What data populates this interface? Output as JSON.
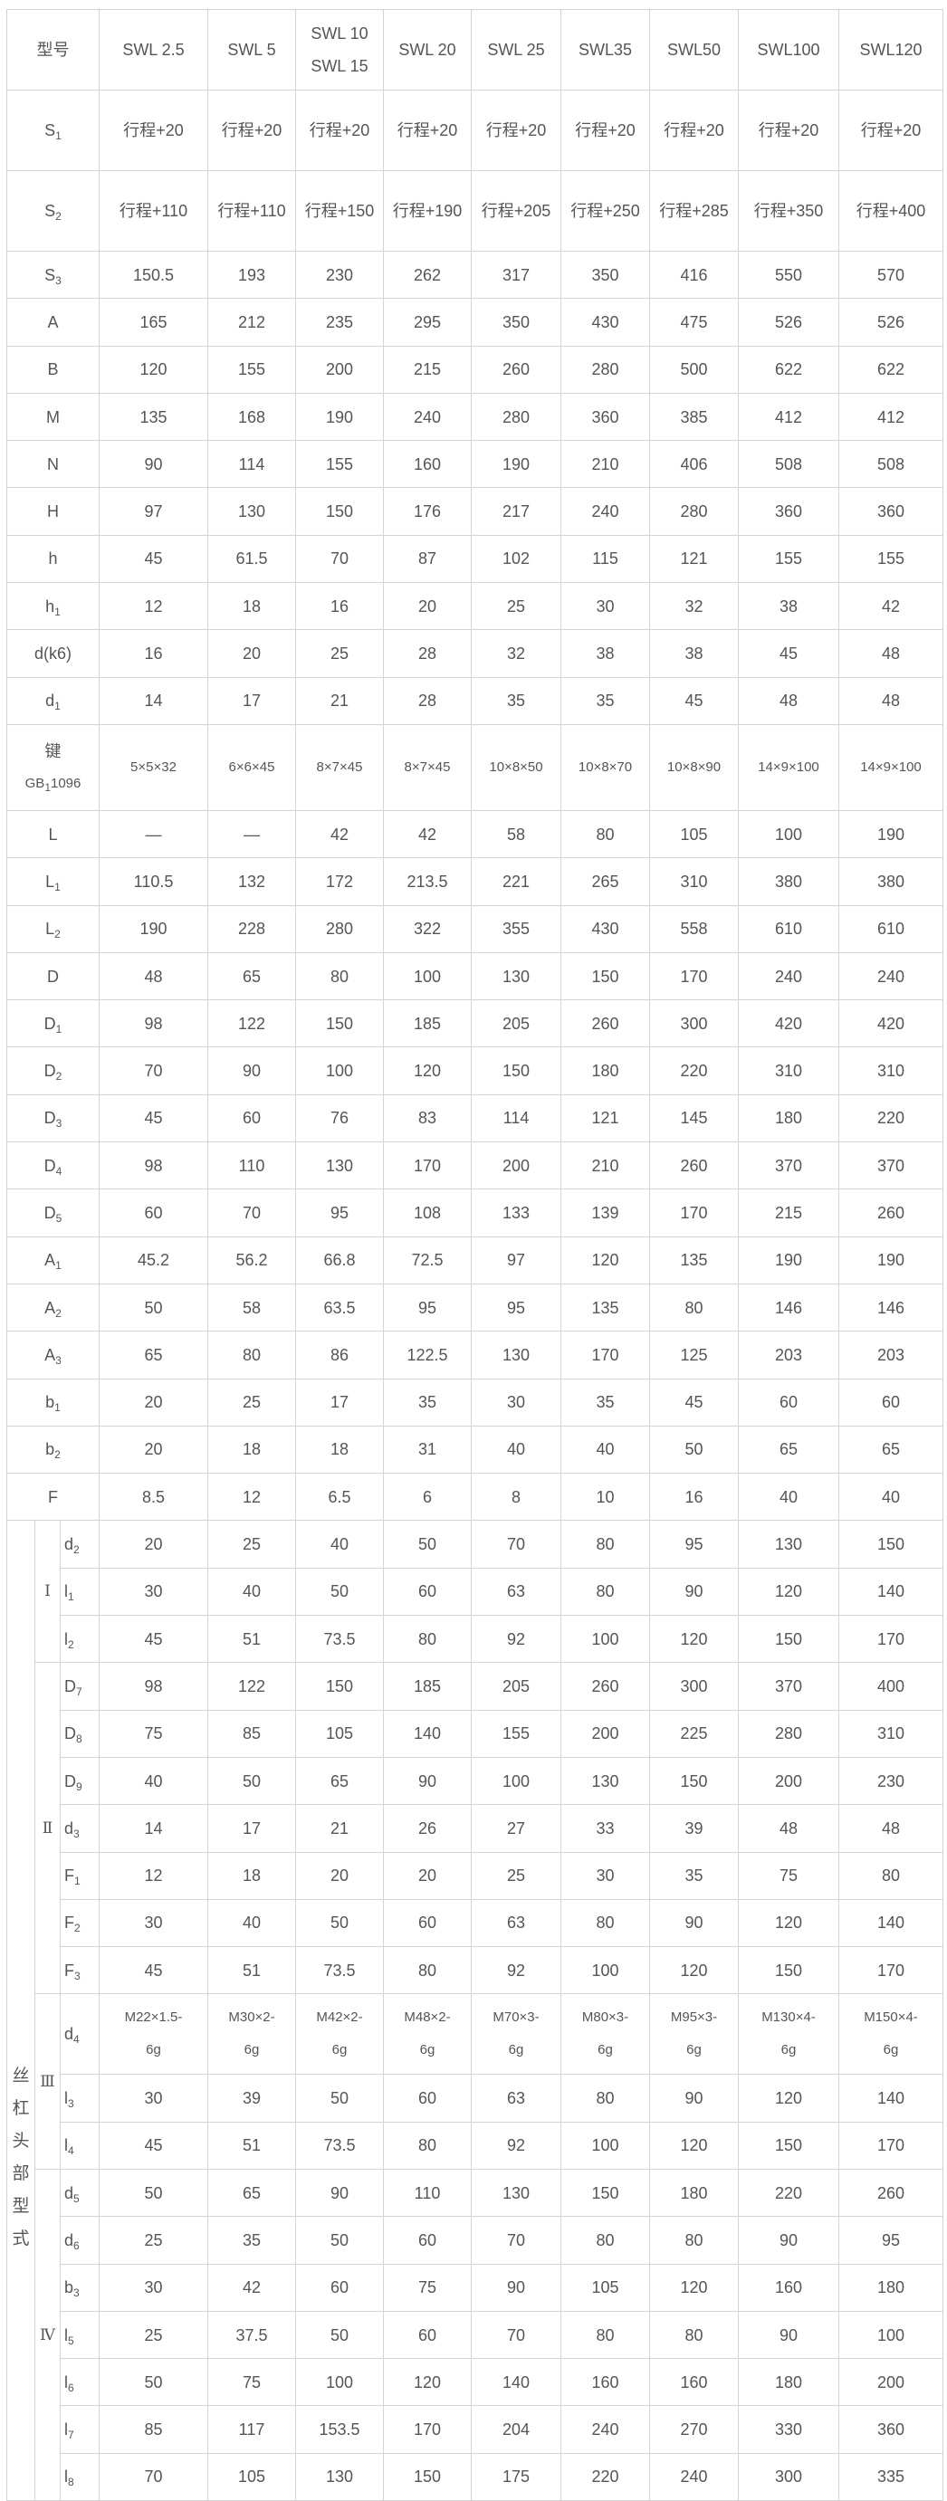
{
  "header": {
    "label": "型号",
    "models": [
      [
        "SWL 2.5"
      ],
      [
        "SWL  5"
      ],
      [
        "SWL 10",
        "SWL 15"
      ],
      [
        "SWL 20"
      ],
      [
        "SWL 25"
      ],
      [
        "SWL35"
      ],
      [
        "SWL50"
      ],
      [
        "SWL100"
      ],
      [
        "SWL120"
      ]
    ]
  },
  "rows": [
    {
      "name": "S",
      "sub": "1",
      "values": [
        "行程+20",
        "行程+20",
        "行程+20",
        "行程+20",
        "行程+20",
        "行程+20",
        "行程+20",
        "行程+20",
        "行程+20"
      ]
    },
    {
      "name": "S",
      "sub": "2",
      "values": [
        "行程+110",
        "行程+110",
        "行程+150",
        "行程+190",
        "行程+205",
        "行程+250",
        "行程+285",
        "行程+350",
        "行程+400"
      ]
    },
    {
      "name": "S",
      "sub": "3",
      "values": [
        "150.5",
        "193",
        "230",
        "262",
        "317",
        "350",
        "416",
        "550",
        "570"
      ]
    },
    {
      "name": "A",
      "sub": "",
      "values": [
        "165",
        "212",
        "235",
        "295",
        "350",
        "430",
        "475",
        "526",
        "526"
      ]
    },
    {
      "name": "B",
      "sub": "",
      "values": [
        "120",
        "155",
        "200",
        "215",
        "260",
        "280",
        "500",
        "622",
        "622"
      ]
    },
    {
      "name": "M",
      "sub": "",
      "values": [
        "135",
        "168",
        "190",
        "240",
        "280",
        "360",
        "385",
        "412",
        "412"
      ]
    },
    {
      "name": "N",
      "sub": "",
      "values": [
        "90",
        "114",
        "155",
        "160",
        "190",
        "210",
        "406",
        "508",
        "508"
      ]
    },
    {
      "name": "H",
      "sub": "",
      "values": [
        "97",
        "130",
        "150",
        "176",
        "217",
        "240",
        "280",
        "360",
        "360"
      ]
    },
    {
      "name": "h",
      "sub": "",
      "values": [
        "45",
        "61.5",
        "70",
        "87",
        "102",
        "115",
        "121",
        "155",
        "155"
      ]
    },
    {
      "name": "h",
      "sub": "1",
      "values": [
        "12",
        "18",
        "16",
        "20",
        "25",
        "30",
        "32",
        "38",
        "42"
      ]
    },
    {
      "name": "d(k6)",
      "sub": "",
      "values": [
        "16",
        "20",
        "25",
        "28",
        "32",
        "38",
        "38",
        "45",
        "48"
      ]
    },
    {
      "name": "d",
      "sub": "1",
      "values": [
        "14",
        "17",
        "21",
        "28",
        "35",
        "35",
        "45",
        "48",
        "48"
      ]
    },
    {
      "name": "键",
      "name2": "GB",
      "sub": "1",
      "name2_rest": "1096",
      "values": [
        "5×5×32",
        "6×6×45",
        "8×7×45",
        "8×7×45",
        "10×8×50",
        "10×8×70",
        "10×8×90",
        "14×9×100",
        "14×9×100"
      ]
    },
    {
      "name": "L",
      "sub": "",
      "values": [
        "—",
        "—",
        "42",
        "42",
        "58",
        "80",
        "105",
        "100",
        "190"
      ]
    },
    {
      "name": "L",
      "sub": "1",
      "values": [
        "110.5",
        "132",
        "172",
        "213.5",
        "221",
        "265",
        "310",
        "380",
        "380"
      ]
    },
    {
      "name": "L",
      "sub": "2",
      "values": [
        "190",
        "228",
        "280",
        "322",
        "355",
        "430",
        "558",
        "610",
        "610"
      ]
    },
    {
      "name": "D",
      "sub": "",
      "values": [
        "48",
        "65",
        "80",
        "100",
        "130",
        "150",
        "170",
        "240",
        "240"
      ]
    },
    {
      "name": "D",
      "sub": "1",
      "values": [
        "98",
        "122",
        "150",
        "185",
        "205",
        "260",
        "300",
        "420",
        "420"
      ]
    },
    {
      "name": "D",
      "sub": "2",
      "values": [
        "70",
        "90",
        "100",
        "120",
        "150",
        "180",
        "220",
        "310",
        "310"
      ]
    },
    {
      "name": "D",
      "sub": "3",
      "values": [
        "45",
        "60",
        "76",
        "83",
        "114",
        "121",
        "145",
        "180",
        "220"
      ]
    },
    {
      "name": "D",
      "sub": "4",
      "values": [
        "98",
        "110",
        "130",
        "170",
        "200",
        "210",
        "260",
        "370",
        "370"
      ]
    },
    {
      "name": "D",
      "sub": "5",
      "values": [
        "60",
        "70",
        "95",
        "108",
        "133",
        "139",
        "170",
        "215",
        "260"
      ]
    },
    {
      "name": "A",
      "sub": "1",
      "values": [
        "45.2",
        "56.2",
        "66.8",
        "72.5",
        "97",
        "120",
        "135",
        "190",
        "190"
      ]
    },
    {
      "name": "A",
      "sub": "2",
      "values": [
        "50",
        "58",
        "63.5",
        "95",
        "95",
        "135",
        "80",
        "146",
        "146"
      ]
    },
    {
      "name": "A",
      "sub": "3",
      "values": [
        "65",
        "80",
        "86",
        "122.5",
        "130",
        "170",
        "125",
        "203",
        "203"
      ]
    },
    {
      "name": "b",
      "sub": "1",
      "values": [
        "20",
        "25",
        "17",
        "35",
        "30",
        "35",
        "45",
        "60",
        "60"
      ]
    },
    {
      "name": "b",
      "sub": "2",
      "values": [
        "20",
        "18",
        "18",
        "31",
        "40",
        "40",
        "50",
        "65",
        "65"
      ]
    },
    {
      "name": "F",
      "sub": "",
      "values": [
        "8.5",
        "12",
        "6.5",
        "6",
        "8",
        "10",
        "16",
        "40",
        "40"
      ]
    }
  ],
  "screw_head": {
    "label": "丝杠头部型式",
    "types": [
      {
        "label": "Ⅰ",
        "rows": [
          {
            "name": "d",
            "sub": "2",
            "values": [
              "20",
              "25",
              "40",
              "50",
              "70",
              "80",
              "95",
              "130",
              "150"
            ]
          },
          {
            "name": "l",
            "sub": "1",
            "values": [
              "30",
              "40",
              "50",
              "60",
              "63",
              "80",
              "90",
              "120",
              "140"
            ]
          },
          {
            "name": "l",
            "sub": "2",
            "values": [
              "45",
              "51",
              "73.5",
              "80",
              "92",
              "100",
              "120",
              "150",
              "170"
            ]
          }
        ]
      },
      {
        "label": "Ⅱ",
        "rows": [
          {
            "name": "D",
            "sub": "7",
            "values": [
              "98",
              "122",
              "150",
              "185",
              "205",
              "260",
              "300",
              "370",
              "400"
            ]
          },
          {
            "name": "D",
            "sub": "8",
            "values": [
              "75",
              "85",
              "105",
              "140",
              "155",
              "200",
              "225",
              "280",
              "310"
            ]
          },
          {
            "name": "D",
            "sub": "9",
            "values": [
              "40",
              "50",
              "65",
              "90",
              "100",
              "130",
              "150",
              "200",
              "230"
            ]
          },
          {
            "name": "d",
            "sub": "3",
            "values": [
              "14",
              "17",
              "21",
              "26",
              "27",
              "33",
              "39",
              "48",
              "48"
            ]
          },
          {
            "name": "F",
            "sub": "1",
            "values": [
              "12",
              "18",
              "20",
              "20",
              "25",
              "30",
              "35",
              "75",
              "80"
            ]
          },
          {
            "name": "F",
            "sub": "2",
            "values": [
              "30",
              "40",
              "50",
              "60",
              "63",
              "80",
              "90",
              "120",
              "140"
            ]
          },
          {
            "name": "F",
            "sub": "3",
            "values": [
              "45",
              "51",
              "73.5",
              "80",
              "92",
              "100",
              "120",
              "150",
              "170"
            ]
          }
        ]
      },
      {
        "label": "Ⅲ",
        "rows": [
          {
            "name": "d",
            "sub": "4",
            "values": [
              "M22×1.5-6g",
              "M30×2-6g",
              "M42×2-6g",
              "M48×2-6g",
              "M70×3-6g",
              "M80×3-6g",
              "M95×3-6g",
              "M130×4-6g",
              "M150×4-6g"
            ]
          },
          {
            "name": "l",
            "sub": "3",
            "values": [
              "30",
              "39",
              "50",
              "60",
              "63",
              "80",
              "90",
              "120",
              "140"
            ]
          },
          {
            "name": "l",
            "sub": "4",
            "values": [
              "45",
              "51",
              "73.5",
              "80",
              "92",
              "100",
              "120",
              "150",
              "170"
            ]
          }
        ]
      },
      {
        "label": "Ⅳ",
        "rows": [
          {
            "name": "d",
            "sub": "5",
            "values": [
              "50",
              "65",
              "90",
              "110",
              "130",
              "150",
              "180",
              "220",
              "260"
            ]
          },
          {
            "name": "d",
            "sub": "6",
            "values": [
              "25",
              "35",
              "50",
              "60",
              "70",
              "80",
              "80",
              "90",
              "95"
            ]
          },
          {
            "name": "b",
            "sub": "3",
            "values": [
              "30",
              "42",
              "60",
              "75",
              "90",
              "105",
              "120",
              "160",
              "180"
            ]
          },
          {
            "name": "l",
            "sub": "5",
            "values": [
              "25",
              "37.5",
              "50",
              "60",
              "70",
              "80",
              "80",
              "90",
              "100"
            ]
          },
          {
            "name": "l",
            "sub": "6",
            "values": [
              "50",
              "75",
              "100",
              "120",
              "140",
              "160",
              "160",
              "180",
              "200"
            ]
          },
          {
            "name": "l",
            "sub": "7",
            "values": [
              "85",
              "117",
              "153.5",
              "170",
              "204",
              "240",
              "270",
              "330",
              "360"
            ]
          },
          {
            "name": "l",
            "sub": "8",
            "values": [
              "70",
              "105",
              "130",
              "150",
              "175",
              "220",
              "240",
              "300",
              "335"
            ]
          }
        ]
      }
    ]
  }
}
